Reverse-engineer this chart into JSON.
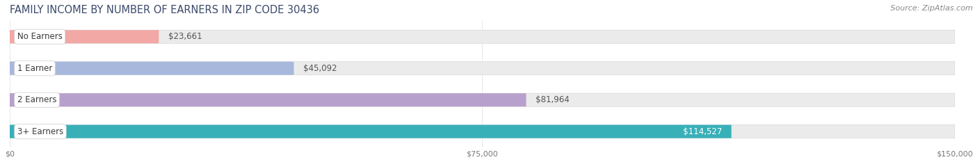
{
  "title": "FAMILY INCOME BY NUMBER OF EARNERS IN ZIP CODE 30436",
  "source": "Source: ZipAtlas.com",
  "categories": [
    "No Earners",
    "1 Earner",
    "2 Earners",
    "3+ Earners"
  ],
  "values": [
    23661,
    45092,
    81964,
    114527
  ],
  "labels": [
    "$23,661",
    "$45,092",
    "$81,964",
    "$114,527"
  ],
  "bar_colors": [
    "#f2a8a5",
    "#a8b8dc",
    "#b8a0cc",
    "#38b0b8"
  ],
  "bg_track_color": "#ebebeb",
  "xmax": 150000,
  "xticks": [
    0,
    75000,
    150000
  ],
  "xticklabels": [
    "$0",
    "$75,000",
    "$150,000"
  ],
  "title_color": "#3a4a6a",
  "title_fontsize": 10.5,
  "source_fontsize": 8,
  "bar_label_fontsize": 8.5,
  "category_fontsize": 8.5,
  "bar_height": 0.42,
  "background_color": "#ffffff",
  "label_inside_color": "white",
  "label_outside_color": "#555555"
}
